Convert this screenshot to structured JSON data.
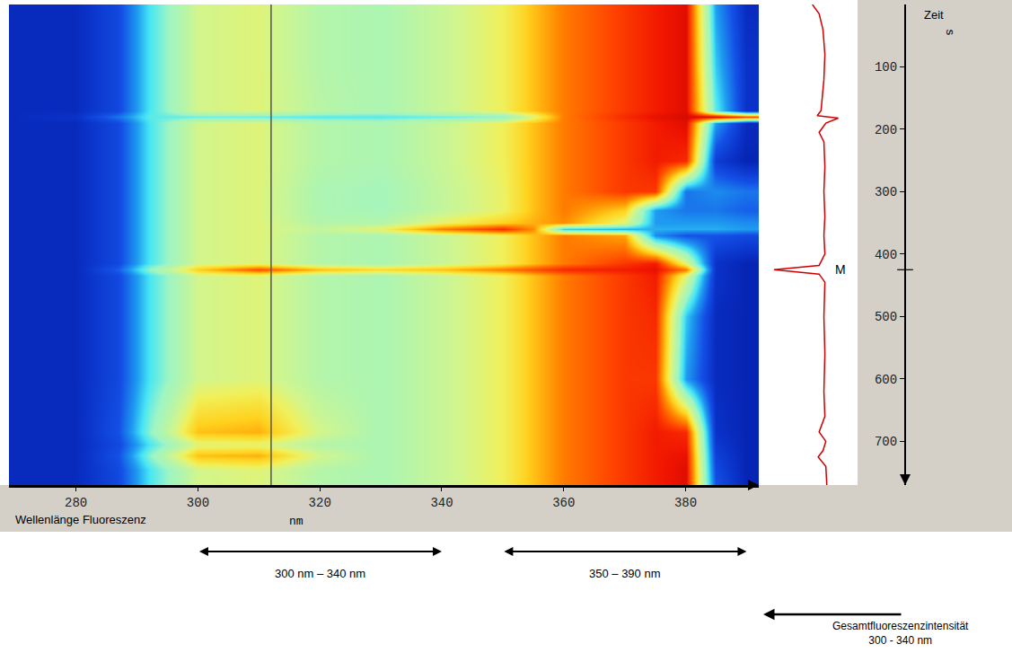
{
  "chart_data": [
    {
      "type": "heatmap",
      "x_label": "Wellenlänge Fluoreszenz",
      "x_unit": "nm",
      "y_label": "Zeit",
      "y_unit": "s",
      "x": [
        270,
        280,
        287,
        292,
        300,
        310,
        320,
        330,
        340,
        350,
        355,
        360,
        370,
        375,
        380,
        385,
        390
      ],
      "y": [
        0,
        100,
        170,
        180,
        190,
        250,
        300,
        330,
        350,
        360,
        370,
        415,
        425,
        435,
        500,
        600,
        685,
        705,
        723,
        745,
        770
      ],
      "z": [
        [
          10,
          10,
          18,
          38,
          58,
          60,
          52,
          50,
          56,
          63,
          72,
          80,
          88,
          92,
          95,
          30,
          10
        ],
        [
          10,
          10,
          18,
          38,
          58,
          60,
          52,
          50,
          56,
          63,
          72,
          80,
          88,
          92,
          95,
          35,
          12
        ],
        [
          10,
          10,
          18,
          38,
          58,
          60,
          53,
          50,
          56,
          63,
          72,
          80,
          88,
          92,
          95,
          40,
          12
        ],
        [
          10,
          12,
          25,
          40,
          42,
          42,
          40,
          40,
          42,
          45,
          60,
          80,
          90,
          94,
          96,
          95,
          85
        ],
        [
          10,
          10,
          18,
          38,
          58,
          60,
          52,
          50,
          56,
          63,
          72,
          80,
          88,
          92,
          95,
          30,
          10
        ],
        [
          10,
          10,
          18,
          38,
          58,
          60,
          52,
          50,
          56,
          63,
          72,
          80,
          88,
          92,
          90,
          15,
          8
        ],
        [
          10,
          10,
          18,
          38,
          58,
          60,
          50,
          48,
          55,
          62,
          72,
          80,
          88,
          88,
          25,
          28,
          25
        ],
        [
          10,
          10,
          18,
          38,
          58,
          60,
          50,
          48,
          55,
          62,
          72,
          80,
          70,
          30,
          25,
          25,
          22
        ],
        [
          10,
          10,
          18,
          38,
          58,
          60,
          52,
          52,
          62,
          70,
          74,
          78,
          60,
          30,
          30,
          30,
          28
        ],
        [
          10,
          10,
          18,
          38,
          58,
          60,
          55,
          62,
          80,
          90,
          78,
          35,
          32,
          32,
          32,
          32,
          30
        ],
        [
          10,
          10,
          18,
          38,
          58,
          60,
          52,
          50,
          56,
          63,
          72,
          80,
          75,
          28,
          20,
          20,
          18
        ],
        [
          10,
          10,
          18,
          38,
          58,
          60,
          52,
          50,
          56,
          63,
          72,
          80,
          88,
          92,
          60,
          12,
          8
        ],
        [
          10,
          10,
          22,
          45,
          70,
          85,
          72,
          68,
          72,
          80,
          85,
          90,
          92,
          94,
          80,
          12,
          8
        ],
        [
          10,
          10,
          18,
          38,
          58,
          60,
          52,
          50,
          56,
          63,
          72,
          80,
          88,
          92,
          60,
          12,
          8
        ],
        [
          10,
          10,
          18,
          38,
          58,
          60,
          52,
          50,
          56,
          63,
          72,
          80,
          88,
          90,
          35,
          10,
          8
        ],
        [
          10,
          10,
          18,
          38,
          58,
          60,
          52,
          50,
          56,
          63,
          72,
          80,
          88,
          88,
          30,
          10,
          8
        ],
        [
          10,
          10,
          20,
          44,
          72,
          74,
          58,
          50,
          56,
          63,
          72,
          80,
          88,
          92,
          90,
          12,
          8
        ],
        [
          10,
          10,
          18,
          38,
          60,
          61,
          52,
          50,
          56,
          63,
          72,
          80,
          88,
          92,
          92,
          14,
          8
        ],
        [
          10,
          10,
          20,
          44,
          72,
          74,
          58,
          50,
          56,
          63,
          72,
          80,
          88,
          92,
          94,
          16,
          8
        ],
        [
          10,
          10,
          18,
          38,
          58,
          60,
          52,
          50,
          56,
          63,
          72,
          80,
          88,
          92,
          95,
          18,
          8
        ],
        [
          10,
          10,
          18,
          38,
          58,
          60,
          52,
          50,
          56,
          63,
          72,
          80,
          88,
          92,
          95,
          20,
          8
        ]
      ],
      "zlim": [
        0,
        100
      ],
      "xlim": [
        269,
        392
      ],
      "xticks": [
        280,
        300,
        320,
        340,
        360,
        380
      ],
      "ylim": [
        0,
        770
      ],
      "yticks": [
        100,
        200,
        300,
        400,
        500,
        600,
        700
      ],
      "marker_wavelength": 312,
      "ranges": [
        {
          "label": "300 nm – 340 nm",
          "from": 300,
          "to": 340
        },
        {
          "label": "350 – 390 nm",
          "from": 350,
          "to": 390
        }
      ],
      "grid": false
    },
    {
      "type": "line",
      "x_label": [
        "Gesamtfluoreszenzintensität",
        "300 - 340 nm"
      ],
      "y": [
        0,
        15,
        40,
        80,
        120,
        170,
        178,
        182,
        190,
        205,
        220,
        260,
        300,
        340,
        370,
        400,
        418,
        425,
        432,
        445,
        500,
        560,
        620,
        660,
        685,
        700,
        715,
        725,
        740,
        770
      ],
      "values": [
        47,
        40,
        36,
        34,
        35,
        38,
        42,
        20,
        33,
        40,
        35,
        34,
        35,
        34,
        35,
        34,
        40,
        87,
        40,
        34,
        35,
        34,
        35,
        34,
        40,
        33,
        36,
        41,
        33,
        32
      ],
      "xlim": [
        100,
        0
      ],
      "color": "#d00000",
      "peak": {
        "text": "M",
        "y": 425
      },
      "tick_labels": false,
      "grid": false
    }
  ]
}
